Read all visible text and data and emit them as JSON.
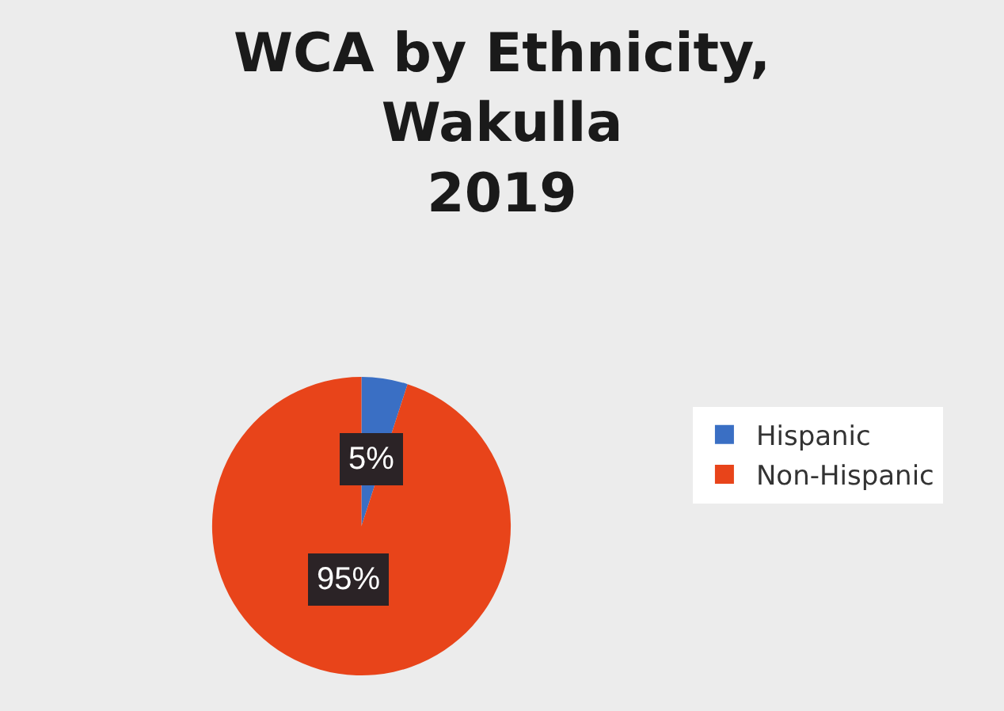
{
  "chart_data": {
    "type": "pie",
    "title": "WCA by Ethnicity,\nWakulla\n2019",
    "categories": [
      "Hispanic",
      "Non-Hispanic"
    ],
    "values": [
      5,
      95
    ],
    "colors": [
      "#3a6fc4",
      "#e8441a"
    ],
    "value_labels": [
      "5%",
      "95%"
    ],
    "legend": "right"
  }
}
